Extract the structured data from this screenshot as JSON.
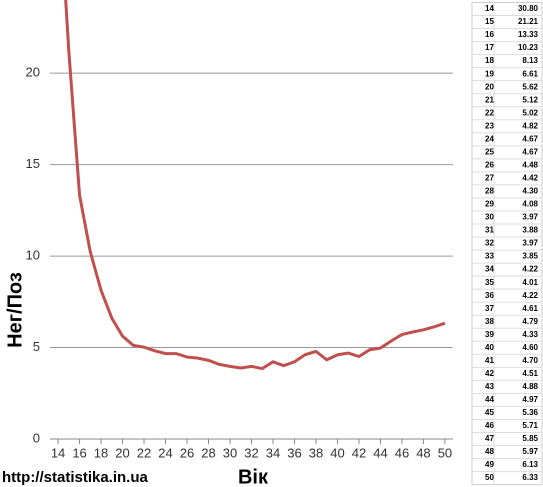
{
  "chart_data": {
    "type": "line",
    "source": "http://statistika.in.ua",
    "y_label": "Нег/Поз",
    "x_label": "Вік",
    "x": [
      14,
      15,
      16,
      17,
      18,
      19,
      20,
      21,
      22,
      23,
      24,
      25,
      26,
      27,
      28,
      29,
      30,
      31,
      32,
      33,
      34,
      35,
      36,
      37,
      38,
      39,
      40,
      41,
      42,
      43,
      44,
      45,
      46,
      47,
      48,
      49,
      50
    ],
    "series": [
      {
        "color": "#c0504d",
        "values": [
          30.8,
          21.21,
          13.33,
          10.23,
          8.13,
          6.61,
          5.62,
          5.12,
          5.02,
          4.82,
          4.67,
          4.67,
          4.48,
          4.42,
          4.3,
          4.08,
          3.97,
          3.88,
          3.97,
          3.85,
          4.22,
          4.01,
          4.22,
          4.61,
          4.79,
          4.33,
          4.6,
          4.7,
          4.51,
          4.88,
          4.97,
          5.36,
          5.71,
          5.85,
          5.97,
          6.13,
          6.33
        ],
        "value_labels": [
          "30.80",
          "21.21",
          "13.33",
          "10.23",
          "8.13",
          "6.61",
          "5.62",
          "5.12",
          "5.02",
          "4.82",
          "4.67",
          "4.67",
          "4.48",
          "4.42",
          "4.30",
          "4.08",
          "3.97",
          "3.88",
          "3.97",
          "3.85",
          "4.22",
          "4.01",
          "4.22",
          "4.61",
          "4.79",
          "4.33",
          "4.60",
          "4.70",
          "4.51",
          "4.88",
          "4.97",
          "5.36",
          "5.71",
          "5.85",
          "5.97",
          "6.13",
          "6.33"
        ]
      }
    ],
    "xlim": [
      13.25,
      50.75
    ],
    "xticks": [
      14,
      16,
      18,
      20,
      22,
      24,
      26,
      28,
      30,
      32,
      34,
      36,
      38,
      40,
      42,
      44,
      46,
      48,
      50
    ],
    "ylim": [
      0,
      24
    ],
    "yticks": [
      0,
      5,
      10,
      15,
      20
    ],
    "grid": true
  }
}
